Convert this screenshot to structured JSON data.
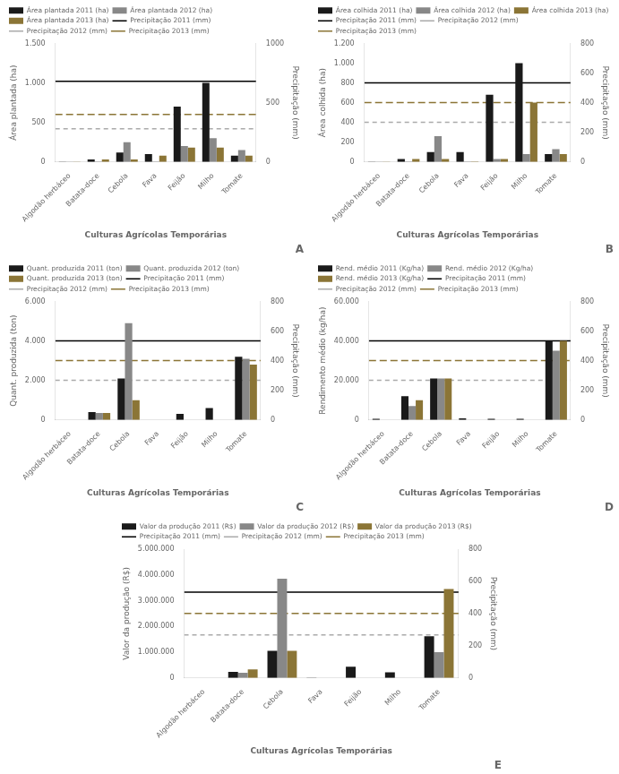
{
  "chart_data": [
    {
      "type": "bar",
      "title": "A",
      "categories": [
        "Algodão herbáceo",
        "Batata-doce",
        "Cebola",
        "Fava",
        "Feijão",
        "Milho",
        "Tomate"
      ],
      "xlabel": "Culturas Agrícolas Temporárias",
      "ylabel": "Área plantada (ha)",
      "y2label": "Precipitação (mm)",
      "series": [
        {
          "name": "Área plantada 2011 (ha)",
          "color": "#1a1a1a",
          "values": [
            2,
            30,
            120,
            100,
            700,
            1000,
            80
          ]
        },
        {
          "name": "Área plantada 2012 (ha)",
          "color": "#888888",
          "values": [
            2,
            5,
            250,
            5,
            200,
            300,
            150
          ]
        },
        {
          "name": "Área plantada 2013 (ha)",
          "color": "#8B7536",
          "values": [
            2,
            30,
            30,
            80,
            180,
            180,
            80
          ]
        },
        {
          "name": "Precipitação 2011 (mm)",
          "type": "hline",
          "axis": "y2",
          "color": "#000000",
          "line_style": "solid",
          "value": 680
        },
        {
          "name": "Precipitação 2012 (mm)",
          "type": "hline",
          "axis": "y2",
          "color": "#aaaaaa",
          "line_style": "dashed",
          "value": 280
        },
        {
          "name": "Precipitação 2013 (mm)",
          "type": "hline",
          "axis": "y2",
          "color": "#8B7536",
          "line_style": "long_dashed",
          "value": 400
        }
      ],
      "ylim": [
        0,
        1500
      ],
      "yticks": [
        0,
        500,
        {
          "value": 1000,
          "label": "1.000"
        },
        {
          "value": 1500,
          "label": "1.500"
        }
      ],
      "y2lim": [
        0,
        1000
      ],
      "y2ticks": [
        0,
        500,
        1000
      ],
      "legend": "upper left",
      "grid": false
    },
    {
      "type": "bar",
      "title": "B",
      "categories": [
        "Algodão herbáceo",
        "Batata-doce",
        "Cebola",
        "Fava",
        "Feijão",
        "Milho",
        "Tomate"
      ],
      "xlabel": "Culturas Agrícolas Temporárias",
      "ylabel": "Área colhida (ha)",
      "y2label": "Precipitação (mm)",
      "series": [
        {
          "name": "Área colhida 2011 (ha)",
          "color": "#1a1a1a",
          "values": [
            2,
            30,
            100,
            100,
            680,
            1000,
            80
          ]
        },
        {
          "name": "Área colhida 2012 (ha)",
          "color": "#888888",
          "values": [
            2,
            5,
            260,
            5,
            30,
            80,
            130
          ]
        },
        {
          "name": "Área colhida 2013 (ha)",
          "color": "#8B7536",
          "values": [
            2,
            30,
            30,
            5,
            30,
            600,
            80
          ]
        },
        {
          "name": "Precipitação 2011 (mm)",
          "type": "hline",
          "axis": "y2",
          "color": "#000000",
          "line_style": "solid",
          "value": 533
        },
        {
          "name": "Precipitação 2012 (mm)",
          "type": "hline",
          "axis": "y2",
          "color": "#aaaaaa",
          "line_style": "dashed",
          "value": 267
        },
        {
          "name": "Precipitação 2013 (mm)",
          "type": "hline",
          "axis": "y2",
          "color": "#8B7536",
          "line_style": "long_dashed",
          "value": 400
        }
      ],
      "ylim": [
        0,
        1200
      ],
      "yticks": [
        0,
        200,
        400,
        600,
        800,
        {
          "value": 1000,
          "label": "1.000"
        },
        {
          "value": 1200,
          "label": "1.200"
        }
      ],
      "y2lim": [
        0,
        800
      ],
      "y2ticks": [
        0,
        200,
        400,
        600,
        800
      ],
      "legend": "upper left",
      "grid": false
    },
    {
      "type": "bar",
      "title": "C",
      "categories": [
        "Algodão herbáceo",
        "Batata-doce",
        "Cebola",
        "Fava",
        "Feijão",
        "Milho",
        "Tomate"
      ],
      "xlabel": "Culturas Agrícolas Temporárias",
      "ylabel": "Quant. produzida (ton)",
      "y2label": "Precipitação (mm)",
      "series": [
        {
          "name": "Quant. produzida 2011 (ton)",
          "color": "#1a1a1a",
          "values": [
            0,
            400,
            2100,
            0,
            300,
            600,
            3200
          ]
        },
        {
          "name": "Quant. produzida 2012 (ton)",
          "color": "#888888",
          "values": [
            0,
            350,
            4900,
            0,
            0,
            0,
            3100
          ]
        },
        {
          "name": "Quant. produzida 2013 (ton)",
          "color": "#8B7536",
          "values": [
            0,
            350,
            1000,
            0,
            0,
            0,
            2800
          ]
        },
        {
          "name": "Precipitação 2011 (mm)",
          "type": "hline",
          "axis": "y2",
          "color": "#000000",
          "line_style": "solid",
          "value": 533
        },
        {
          "name": "Precipitação 2012 (mm)",
          "type": "hline",
          "axis": "y2",
          "color": "#aaaaaa",
          "line_style": "dashed",
          "value": 267
        },
        {
          "name": "Precipitação 2013 (mm)",
          "type": "hline",
          "axis": "y2",
          "color": "#8B7536",
          "line_style": "long_dashed",
          "value": 400
        }
      ],
      "ylim": [
        0,
        6000
      ],
      "yticks": [
        0,
        {
          "value": 2000,
          "label": "2.000"
        },
        {
          "value": 4000,
          "label": "4.000"
        },
        {
          "value": 6000,
          "label": "6.000"
        }
      ],
      "y2lim": [
        0,
        800
      ],
      "y2ticks": [
        0,
        200,
        400,
        600,
        800
      ],
      "legend": "upper left",
      "grid": false
    },
    {
      "type": "bar",
      "title": "D",
      "categories": [
        "Algodão herbáceo",
        "Batata-doce",
        "Cebola",
        "Fava",
        "Feijão",
        "Milho",
        "Tomate"
      ],
      "xlabel": "Culturas Agrícolas Temporárias",
      "ylabel": "Rendimento médio (kg/ha)",
      "y2label": "Precipitação (mm)",
      "series": [
        {
          "name": "Rend. médio 2011 (Kg/ha)",
          "color": "#1a1a1a",
          "values": [
            500,
            12000,
            21000,
            800,
            500,
            500,
            40000
          ]
        },
        {
          "name": "Rend. médio 2012 (Kg/ha)",
          "color": "#888888",
          "values": [
            0,
            7000,
            21000,
            0,
            0,
            0,
            35000
          ]
        },
        {
          "name": "Rend. médio 2013 (Kg/ha)",
          "color": "#8B7536",
          "values": [
            0,
            10000,
            21000,
            0,
            0,
            0,
            40000
          ]
        },
        {
          "name": "Precipitação 2011 (mm)",
          "type": "hline",
          "axis": "y2",
          "color": "#000000",
          "line_style": "solid",
          "value": 533
        },
        {
          "name": "Precipitação 2012 (mm)",
          "type": "hline",
          "axis": "y2",
          "color": "#aaaaaa",
          "line_style": "dashed",
          "value": 267
        },
        {
          "name": "Precipitação 2013 (mm)",
          "type": "hline",
          "axis": "y2",
          "color": "#8B7536",
          "line_style": "long_dashed",
          "value": 400
        }
      ],
      "ylim": [
        0,
        60000
      ],
      "yticks": [
        0,
        {
          "value": 20000,
          "label": "20.000"
        },
        {
          "value": 40000,
          "label": "40.000"
        },
        {
          "value": 60000,
          "label": "60.000"
        }
      ],
      "y2lim": [
        0,
        800
      ],
      "y2ticks": [
        0,
        200,
        400,
        600,
        800
      ],
      "legend": "upper left",
      "grid": false
    },
    {
      "type": "bar",
      "title": "E",
      "categories": [
        "Algodão herbáceo",
        "Batata-doce",
        "Cebola",
        "Fava",
        "Feijão",
        "Milho",
        "Tomate"
      ],
      "xlabel": "Culturas Agrícolas Temporárias",
      "ylabel": "Valor da produção (R$)",
      "y2label": "Precipitação (mm)",
      "series": [
        {
          "name": "Valor da produção 2011 (R$)",
          "color": "#1a1a1a",
          "values": [
            0,
            230000,
            1050000,
            10000,
            430000,
            220000,
            1620000
          ]
        },
        {
          "name": "Valor da produção 2012 (R$)",
          "color": "#888888",
          "values": [
            0,
            200000,
            3850000,
            0,
            0,
            0,
            1000000
          ]
        },
        {
          "name": "Valor da produção 2013 (R$)",
          "color": "#8B7536",
          "values": [
            0,
            330000,
            1050000,
            0,
            0,
            0,
            3450000
          ]
        },
        {
          "name": "Precipitação 2011 (mm)",
          "type": "hline",
          "axis": "y2",
          "color": "#000000",
          "line_style": "solid",
          "value": 533
        },
        {
          "name": "Precipitação 2012 (mm)",
          "type": "hline",
          "axis": "y2",
          "color": "#aaaaaa",
          "line_style": "dashed",
          "value": 267
        },
        {
          "name": "Precipitação 2013 (mm)",
          "type": "hline",
          "axis": "y2",
          "color": "#8B7536",
          "line_style": "long_dashed",
          "value": 400
        }
      ],
      "ylim": [
        0,
        5000000
      ],
      "yticks": [
        0,
        {
          "value": 1000000,
          "label": "1.000.000"
        },
        {
          "value": 2000000,
          "label": "2.000.000"
        },
        {
          "value": 3000000,
          "label": "3.000.000"
        },
        {
          "value": 4000000,
          "label": "4.000.000"
        },
        {
          "value": 5000000,
          "label": "5.000.000"
        }
      ],
      "y2lim": [
        0,
        800
      ],
      "y2ticks": [
        0,
        200,
        400,
        600,
        800
      ],
      "legend": "upper left",
      "grid": false
    }
  ]
}
